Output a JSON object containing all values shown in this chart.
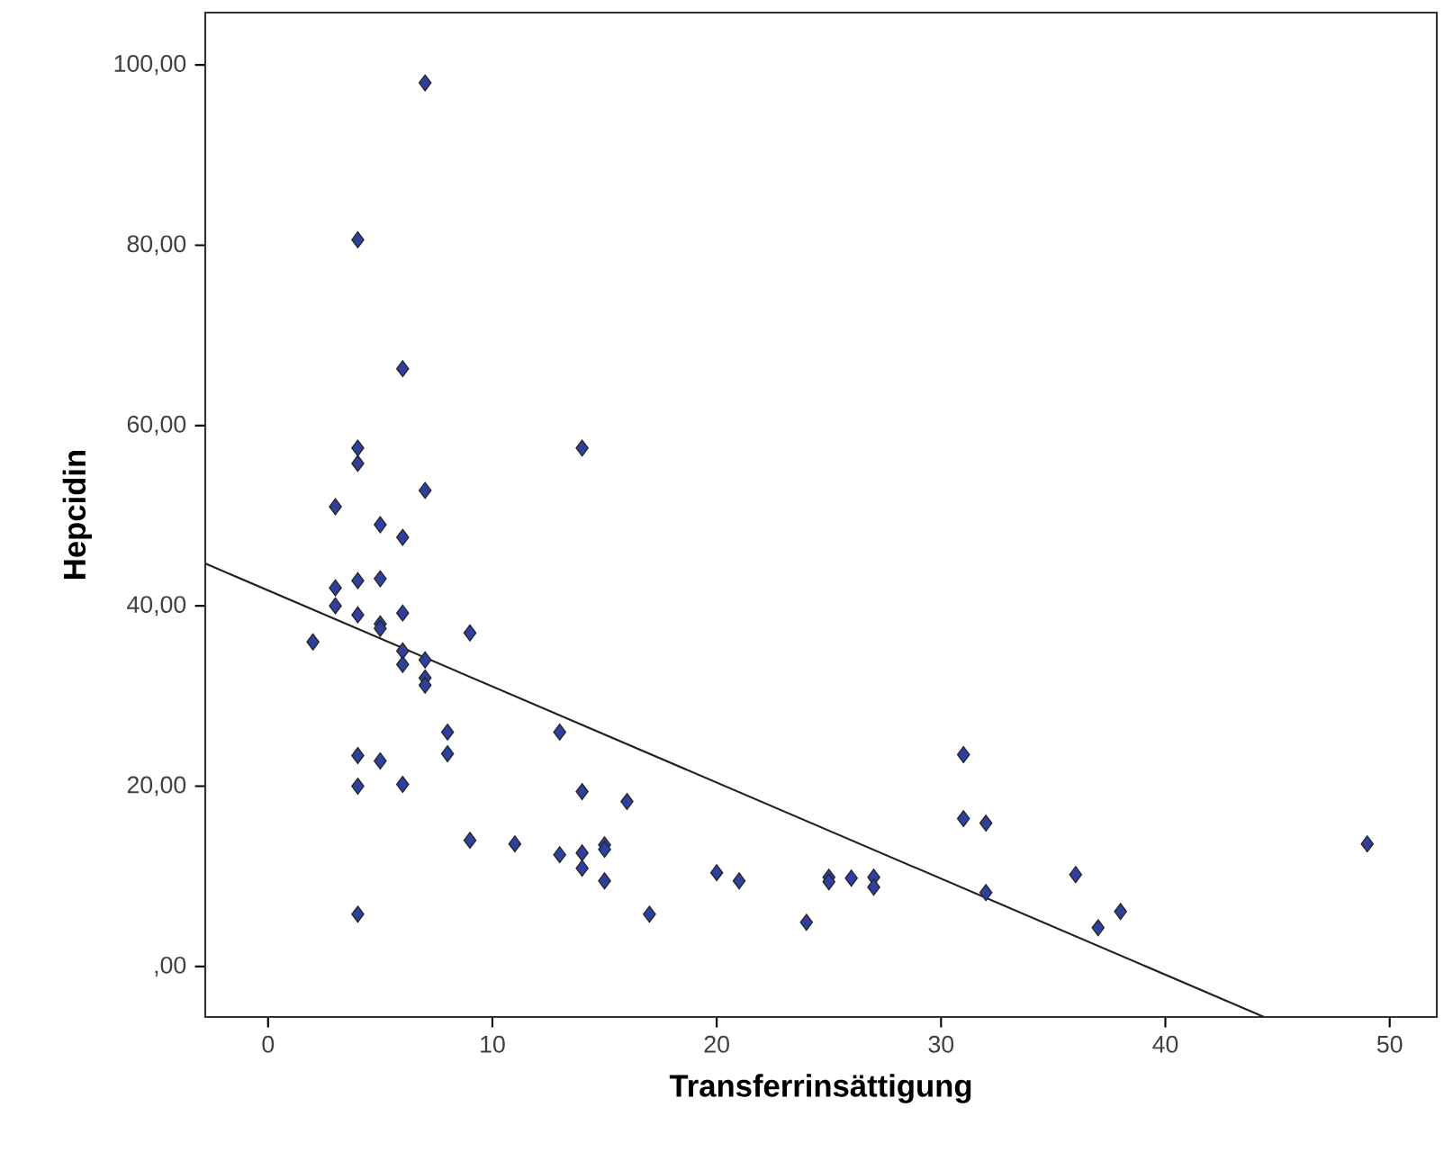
{
  "chart_data": {
    "type": "scatter",
    "xlabel": "Transferrinsättigung",
    "ylabel": "Hepcidin",
    "xlim": [
      -2.8,
      52.1
    ],
    "ylim": [
      -5.6,
      105.8
    ],
    "xticks": [
      0,
      10,
      20,
      30,
      40,
      50
    ],
    "yticks": [
      {
        "value": 0,
        "label": ",00"
      },
      {
        "value": 20,
        "label": "20,00"
      },
      {
        "value": 40,
        "label": "40,00"
      },
      {
        "value": 60,
        "label": "60,00"
      },
      {
        "value": 80,
        "label": "80,00"
      },
      {
        "value": 100,
        "label": "100,00"
      }
    ],
    "marker": "diamond",
    "grid": false,
    "series": [
      {
        "color": "#2e3f9e",
        "x": [
          7,
          4,
          6,
          14,
          4,
          4,
          7,
          3,
          5,
          6,
          5,
          4,
          3,
          3,
          4,
          6,
          5,
          5,
          2,
          9,
          6,
          6,
          7,
          7,
          7,
          8,
          8,
          13,
          4,
          5,
          4,
          6,
          14,
          16,
          9,
          11,
          13,
          14,
          14,
          15,
          15,
          15,
          17,
          4,
          20,
          21,
          24,
          25,
          25,
          26,
          27,
          27,
          31,
          31,
          32,
          32,
          36,
          37,
          38,
          49
        ],
        "values": [
          98,
          80.6,
          66.3,
          57.5,
          57.5,
          55.8,
          52.8,
          51,
          49,
          47.6,
          43,
          42.8,
          42,
          40,
          39,
          39.2,
          38,
          37.5,
          36,
          37,
          35,
          33.5,
          34,
          32,
          31.2,
          26,
          23.6,
          26,
          23.4,
          22.8,
          20,
          20.2,
          19.4,
          18.3,
          14,
          13.6,
          12.4,
          12.6,
          10.9,
          13.5,
          13,
          9.5,
          5.8,
          5.8,
          10.4,
          9.5,
          4.9,
          9.9,
          9.4,
          9.8,
          9.9,
          8.8,
          23.5,
          16.4,
          15.9,
          8.2,
          10.2,
          4.3,
          6.1,
          13.6
        ]
      },
      {
        "type": "line",
        "color": "#222222",
        "marker": "none",
        "x": [
          -2.8,
          44.4
        ],
        "values": [
          44.7,
          -5.6
        ]
      }
    ]
  }
}
